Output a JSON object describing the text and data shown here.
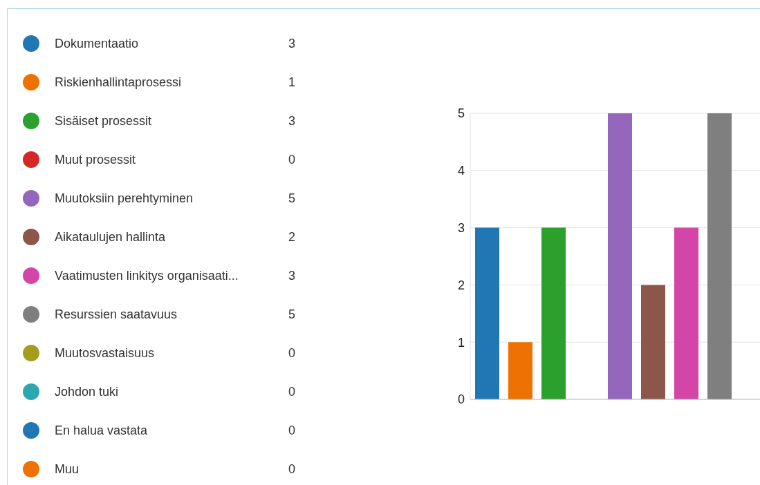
{
  "chart_data": {
    "type": "bar",
    "categories": [
      null
    ],
    "series": [
      {
        "name": "Dokumentaatio",
        "color": "#2077b4",
        "values": [
          3
        ]
      },
      {
        "name": "Riskienhallintaprosessi",
        "color": "#ee7203",
        "values": [
          1
        ]
      },
      {
        "name": "Sisäiset prosessit",
        "color": "#2ca02c",
        "values": [
          3
        ]
      },
      {
        "name": "Muut prosessit",
        "color": "#d62728",
        "values": [
          0
        ]
      },
      {
        "name": "Muutoksiin perehtyminen",
        "color": "#9467bd",
        "values": [
          5
        ]
      },
      {
        "name": "Aikataulujen hallinta",
        "color": "#8c564b",
        "values": [
          2
        ]
      },
      {
        "name": "Vaatimusten linkitys organisaati...",
        "color": "#d445a8",
        "values": [
          3
        ]
      },
      {
        "name": "Resurssien saatavuus",
        "color": "#7f7f7f",
        "values": [
          5
        ]
      },
      {
        "name": "Muutosvastaisuus",
        "color": "#a59c1e",
        "values": [
          0
        ]
      },
      {
        "name": "Johdon tuki",
        "color": "#2ba7b0",
        "values": [
          0
        ]
      },
      {
        "name": "En halua vastata",
        "color": "#2077b4",
        "values": [
          0
        ]
      },
      {
        "name": "Muu",
        "color": "#ee7203",
        "values": [
          0
        ]
      }
    ],
    "ylim": [
      0,
      5
    ],
    "yticks": [
      0,
      1,
      2,
      3,
      4,
      5
    ],
    "grid": "y",
    "legend": "left",
    "tick_labels": "y",
    "annotations": [
      "3",
      "1",
      "3",
      "0",
      "5",
      "2",
      "3",
      "5",
      "0",
      "0",
      "0",
      "0"
    ]
  }
}
